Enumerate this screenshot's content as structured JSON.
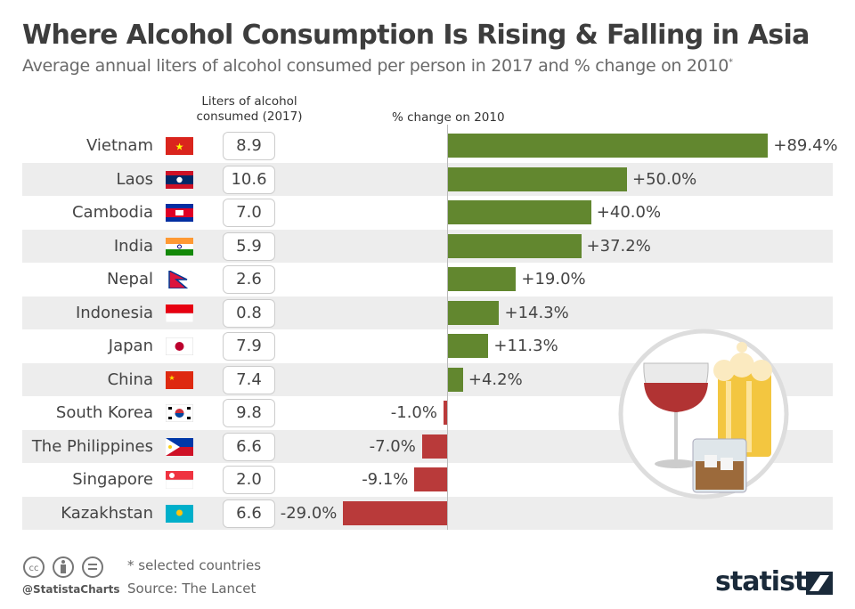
{
  "title": "Where Alcohol Consumption Is Rising & Falling in Asia",
  "subtitle": "Average annual liters of alcohol consumed per person in 2017 and % change on 2010",
  "subtitle_mark": "*",
  "chart_data": {
    "type": "bar",
    "orientation": "horizontal",
    "column_liters_header": "Liters of alcohol consumed (2017)",
    "column_change_header": "% change on 2010",
    "categories": [
      "Vietnam",
      "Laos",
      "Cambodia",
      "India",
      "Nepal",
      "Indonesia",
      "Japan",
      "China",
      "South Korea",
      "The Philippines",
      "Singapore",
      "Kazakhstan"
    ],
    "liters": [
      "8.9",
      "10.6",
      "7.0",
      "5.9",
      "2.6",
      "0.8",
      "7.9",
      "7.4",
      "9.8",
      "6.6",
      "2.0",
      "6.6"
    ],
    "values": [
      89.4,
      50.0,
      40.0,
      37.2,
      19.0,
      14.3,
      11.3,
      4.2,
      -1.0,
      -7.0,
      -9.1,
      -29.0
    ],
    "labels": [
      "+89.4%",
      "+50.0%",
      "+40.0%",
      "+37.2%",
      "+19.0%",
      "+14.3%",
      "+11.3%",
      "+4.2%",
      "-1.0%",
      "-7.0%",
      "-9.1%",
      "-29.0%"
    ],
    "colors": {
      "positive": "#62872f",
      "negative": "#b93a3a"
    }
  },
  "footer": {
    "note": "* selected countries",
    "source": "Source: The Lancet",
    "handle": "@StatistaCharts",
    "logo": "statista"
  }
}
